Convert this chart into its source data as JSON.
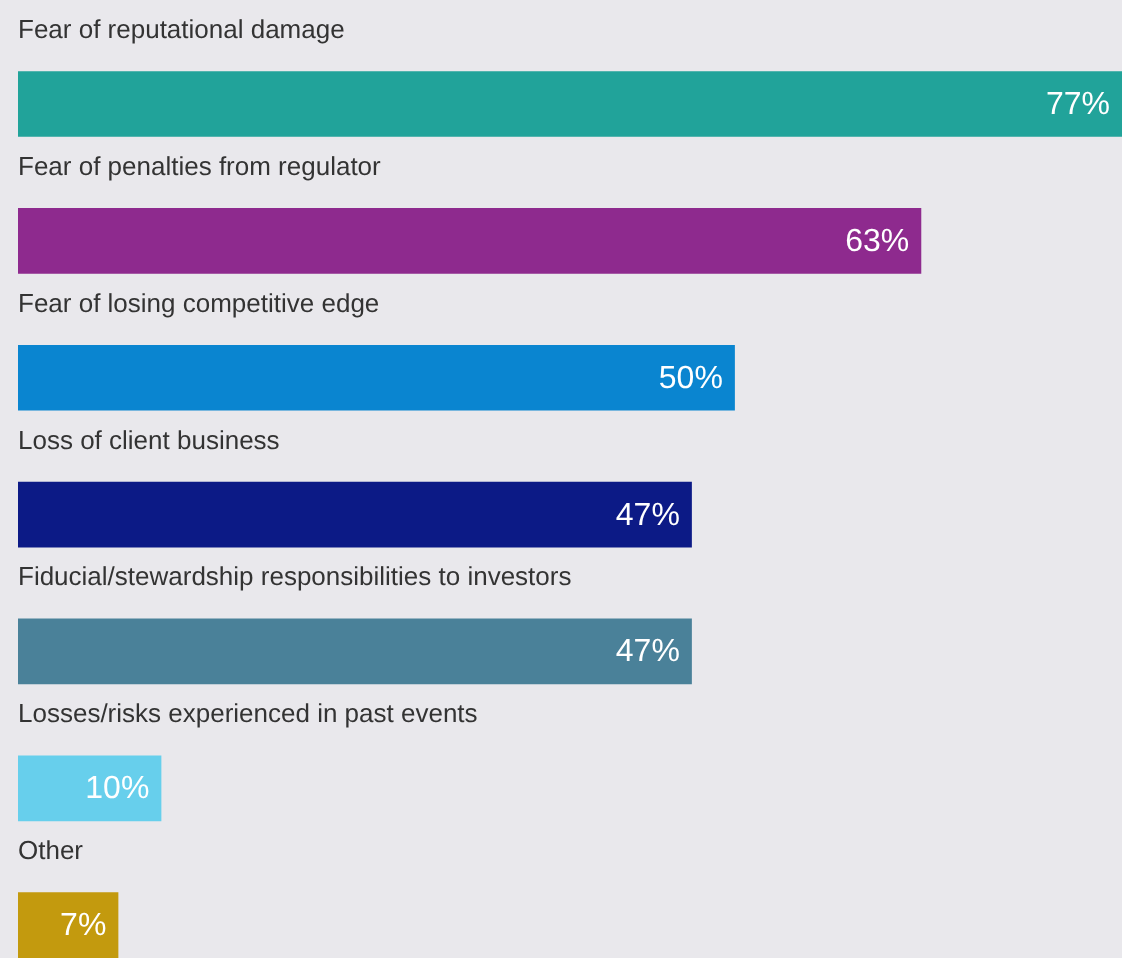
{
  "chart_data": {
    "type": "bar",
    "orientation": "horizontal",
    "data_labels": true,
    "categories": [
      "Fear of reputational damage",
      "Fear of penalties from regulator",
      "Fear of losing competitive edge",
      "Loss of client business",
      "Fiducial/stewardship responsibilities to investors",
      "Losses/risks experienced in past events",
      "Other"
    ],
    "values": [
      77,
      63,
      50,
      47,
      47,
      10,
      7
    ],
    "value_labels": [
      "77%",
      "63%",
      "50%",
      "47%",
      "47%",
      "10%",
      "7%"
    ],
    "colors": [
      "#21a39a",
      "#8e2a8e",
      "#0a85d0",
      "#0c1a86",
      "#4a8199",
      "#67cfec",
      "#c39a0e"
    ]
  }
}
